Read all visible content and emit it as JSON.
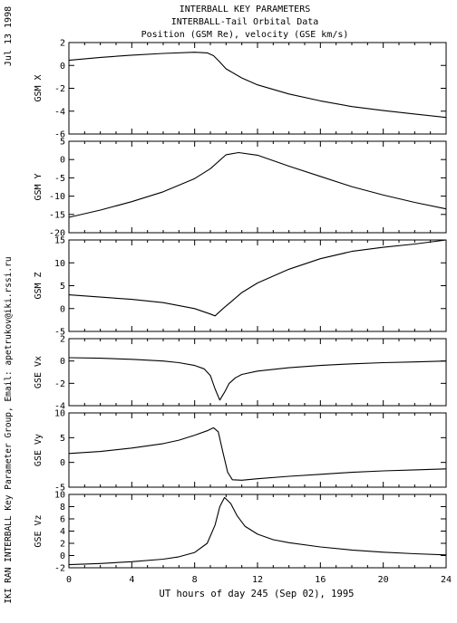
{
  "header": {
    "line1": "INTERBALL KEY PARAMETERS",
    "line2": "INTERBALL-Tail Orbital Data",
    "line3": "Position (GSM Re), velocity (GSE km/s)"
  },
  "side": {
    "date": "Jul 13 1998",
    "credit": "IKI RAN INTERBALL Key Parameter Group, Email: apetrukov@iki.rssi.ru"
  },
  "chart_data": [
    {
      "type": "line",
      "ylabel": "GSM X",
      "x_range": [
        0,
        24
      ],
      "ylim": [
        -6,
        2
      ],
      "yticks": [
        "2",
        "0",
        "-2",
        "-4",
        "-6"
      ],
      "points": [
        [
          0,
          0.45
        ],
        [
          2,
          0.7
        ],
        [
          4,
          0.9
        ],
        [
          6,
          1.05
        ],
        [
          8,
          1.15
        ],
        [
          8.8,
          1.1
        ],
        [
          9.2,
          0.85
        ],
        [
          9.6,
          0.3
        ],
        [
          10,
          -0.3
        ],
        [
          11,
          -1.1
        ],
        [
          12,
          -1.7
        ],
        [
          14,
          -2.5
        ],
        [
          16,
          -3.1
        ],
        [
          18,
          -3.6
        ],
        [
          20,
          -3.95
        ],
        [
          22,
          -4.25
        ],
        [
          24,
          -4.55
        ]
      ]
    },
    {
      "type": "line",
      "ylabel": "GSM Y",
      "x_range": [
        0,
        24
      ],
      "ylim": [
        -20,
        5
      ],
      "yticks": [
        "5",
        "0",
        "-5",
        "-10",
        "-15",
        "-20"
      ],
      "points": [
        [
          0,
          -15.8
        ],
        [
          2,
          -13.8
        ],
        [
          4,
          -11.5
        ],
        [
          6,
          -8.8
        ],
        [
          8,
          -5.2
        ],
        [
          9,
          -2.5
        ],
        [
          10,
          1.3
        ],
        [
          10.8,
          1.9
        ],
        [
          12,
          1.2
        ],
        [
          14,
          -1.8
        ],
        [
          16,
          -4.6
        ],
        [
          18,
          -7.4
        ],
        [
          20,
          -9.7
        ],
        [
          22,
          -11.7
        ],
        [
          24,
          -13.5
        ]
      ]
    },
    {
      "type": "line",
      "ylabel": "GSM Z",
      "x_range": [
        0,
        24
      ],
      "ylim": [
        -5,
        15
      ],
      "yticks": [
        "15",
        "10",
        "5",
        "0",
        "-5"
      ],
      "points": [
        [
          0,
          3
        ],
        [
          2,
          2.5
        ],
        [
          4,
          2
        ],
        [
          6,
          1.3
        ],
        [
          8,
          0
        ],
        [
          9,
          -1.2
        ],
        [
          9.3,
          -1.6
        ],
        [
          9.8,
          0
        ],
        [
          10.5,
          2
        ],
        [
          11,
          3.5
        ],
        [
          12,
          5.6
        ],
        [
          14,
          8.6
        ],
        [
          16,
          10.9
        ],
        [
          18,
          12.5
        ],
        [
          20,
          13.4
        ],
        [
          22,
          14.1
        ],
        [
          24,
          15
        ]
      ]
    },
    {
      "type": "line",
      "ylabel": "GSE Vx",
      "x_range": [
        0,
        24
      ],
      "ylim": [
        -4,
        2
      ],
      "yticks": [
        "2",
        "0",
        "-2",
        "-4"
      ],
      "points": [
        [
          0,
          0.3
        ],
        [
          2,
          0.25
        ],
        [
          4,
          0.15
        ],
        [
          6,
          0
        ],
        [
          7,
          -0.15
        ],
        [
          8,
          -0.4
        ],
        [
          8.6,
          -0.7
        ],
        [
          9,
          -1.3
        ],
        [
          9.3,
          -2.5
        ],
        [
          9.6,
          -3.5
        ],
        [
          9.9,
          -2.8
        ],
        [
          10.2,
          -2
        ],
        [
          10.6,
          -1.5
        ],
        [
          11,
          -1.2
        ],
        [
          12,
          -0.9
        ],
        [
          14,
          -0.6
        ],
        [
          16,
          -0.4
        ],
        [
          18,
          -0.25
        ],
        [
          20,
          -0.15
        ],
        [
          22,
          -0.08
        ],
        [
          24,
          0
        ]
      ]
    },
    {
      "type": "line",
      "ylabel": "GSE Vy",
      "x_range": [
        0,
        24
      ],
      "ylim": [
        -5,
        10
      ],
      "yticks": [
        "10",
        "5",
        "0",
        "-5"
      ],
      "points": [
        [
          0,
          1.8
        ],
        [
          2,
          2.2
        ],
        [
          4,
          2.9
        ],
        [
          6,
          3.8
        ],
        [
          7,
          4.5
        ],
        [
          8,
          5.5
        ],
        [
          8.8,
          6.4
        ],
        [
          9.2,
          7
        ],
        [
          9.5,
          6.2
        ],
        [
          9.8,
          2
        ],
        [
          10.1,
          -2
        ],
        [
          10.4,
          -3.5
        ],
        [
          11,
          -3.6
        ],
        [
          12,
          -3.3
        ],
        [
          14,
          -2.8
        ],
        [
          16,
          -2.4
        ],
        [
          18,
          -2
        ],
        [
          20,
          -1.7
        ],
        [
          22,
          -1.5
        ],
        [
          24,
          -1.3
        ]
      ]
    },
    {
      "type": "line",
      "ylabel": "GSE Vz",
      "x_range": [
        0,
        24
      ],
      "ylim": [
        -2,
        10
      ],
      "yticks": [
        "10",
        "8",
        "6",
        "4",
        "2",
        "0",
        "-2"
      ],
      "points": [
        [
          0,
          -1.5
        ],
        [
          2,
          -1.3
        ],
        [
          4,
          -1
        ],
        [
          6,
          -0.6
        ],
        [
          7,
          -0.2
        ],
        [
          8,
          0.5
        ],
        [
          8.8,
          2
        ],
        [
          9.3,
          5
        ],
        [
          9.6,
          8
        ],
        [
          9.9,
          9.5
        ],
        [
          10.3,
          8.5
        ],
        [
          10.7,
          6.5
        ],
        [
          11.2,
          4.8
        ],
        [
          12,
          3.5
        ],
        [
          13,
          2.6
        ],
        [
          14,
          2.1
        ],
        [
          16,
          1.4
        ],
        [
          18,
          0.9
        ],
        [
          20,
          0.55
        ],
        [
          22,
          0.3
        ],
        [
          24,
          0.1
        ]
      ]
    }
  ],
  "x_axis": {
    "ticks": [
      "0",
      "4",
      "8",
      "12",
      "16",
      "20",
      "24"
    ],
    "label": "UT hours of day 245 (Sep 02), 1995"
  }
}
